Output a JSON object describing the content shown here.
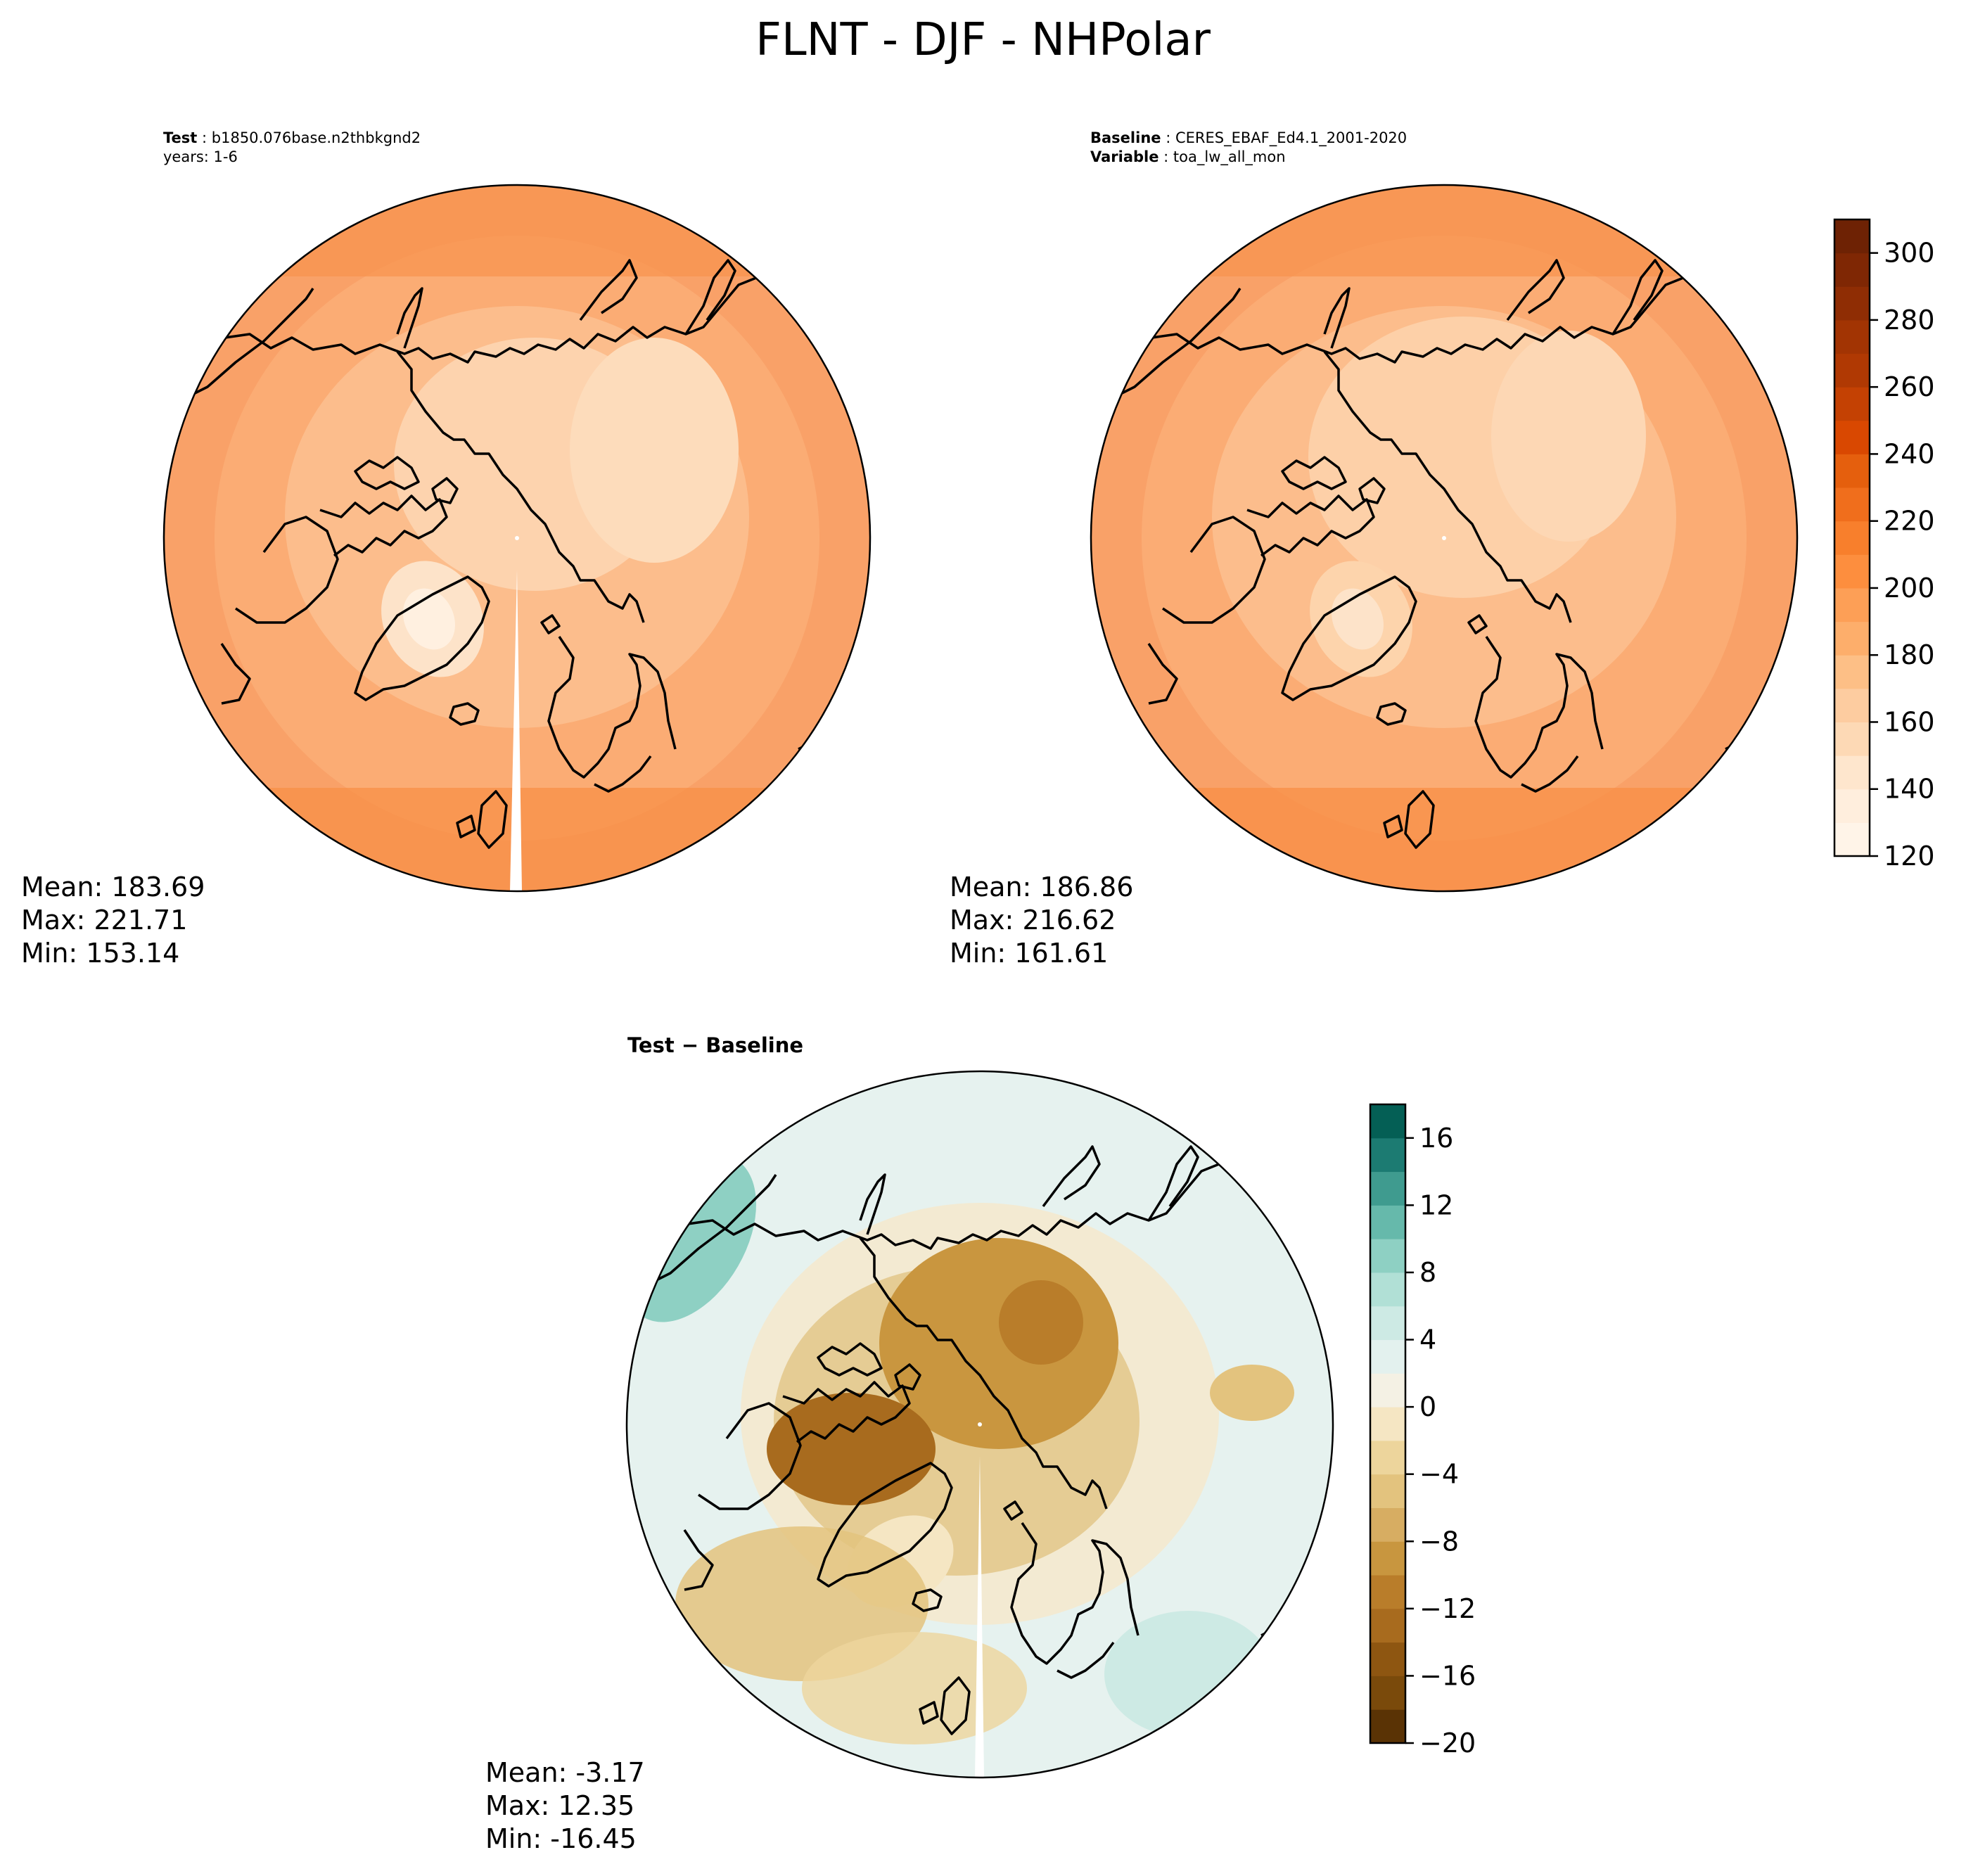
{
  "title": "FLNT - DJF - NHPolar",
  "panels": {
    "test": {
      "label_key": "Test",
      "label_value": "b1850.076base.n2thbkgnd2",
      "line2": "years: 1-6",
      "stats": {
        "mean": "Mean: 183.69",
        "max": "Max: 221.71",
        "min": "Min: 153.14"
      }
    },
    "baseline": {
      "label_key": "Baseline",
      "label_value": "CERES_EBAF_Ed4.1_2001-2020",
      "line2_key": "Variable",
      "line2_value": "toa_lw_all_mon",
      "stats": {
        "mean": "Mean: 186.86",
        "max": "Max: 216.62",
        "min": "Min: 161.61"
      }
    },
    "diff": {
      "title": "Test − Baseline",
      "stats": {
        "mean": "Mean: -3.17",
        "max": "Max: 12.35",
        "min": "Min: -16.45"
      }
    }
  },
  "chart_data": [
    {
      "type": "heatmap",
      "panel": "test",
      "projection": "north polar stereographic",
      "colormap": "Oranges",
      "clim": [
        120,
        310
      ],
      "mean": 183.69,
      "max": 221.71,
      "min": 153.14
    },
    {
      "type": "heatmap",
      "panel": "baseline",
      "projection": "north polar stereographic",
      "colormap": "Oranges",
      "clim": [
        120,
        310
      ],
      "mean": 186.86,
      "max": 216.62,
      "min": 161.61,
      "colorbar": {
        "ticks": [
          120,
          140,
          160,
          180,
          200,
          220,
          240,
          260,
          280,
          300
        ],
        "tick_labels": [
          "120",
          "140",
          "160",
          "180",
          "200",
          "220",
          "240",
          "260",
          "280",
          "300"
        ],
        "levels": 19,
        "colors": [
          "#fff4e8",
          "#ffeedd",
          "#fee6cd",
          "#fdd9b5",
          "#fdcca0",
          "#fdbf86",
          "#fdae6b",
          "#fd9f56",
          "#fd8e3e",
          "#f87f2c",
          "#f06e1c",
          "#e55f0d",
          "#d94801",
          "#c44103",
          "#b03903",
          "#a23403",
          "#8f2d04",
          "#7f2704",
          "#6e2204"
        ]
      }
    },
    {
      "type": "heatmap",
      "panel": "diff",
      "projection": "north polar stereographic",
      "colormap": "BrBG",
      "clim": [
        -20,
        18
      ],
      "mean": -3.17,
      "max": 12.35,
      "min": -16.45,
      "colorbar": {
        "ticks": [
          -20,
          -16,
          -12,
          -8,
          -4,
          0,
          4,
          8,
          12,
          16
        ],
        "tick_labels": [
          "−20",
          "−16",
          "−12",
          "−8",
          "−4",
          "0",
          "4",
          "8",
          "12",
          "16"
        ],
        "levels": 19,
        "colors": [
          "#5a3305",
          "#7a4a0b",
          "#8e5611",
          "#a86b1e",
          "#b97d2a",
          "#c8963f",
          "#d7ad62",
          "#e3c37e",
          "#edd59c",
          "#f5e6c3",
          "#f4f1e4",
          "#e3f1ee",
          "#cdeae4",
          "#b1e0d6",
          "#8ed0c3",
          "#66b9ab",
          "#3f9b8f",
          "#1c7b72",
          "#045f55"
        ]
      }
    }
  ]
}
